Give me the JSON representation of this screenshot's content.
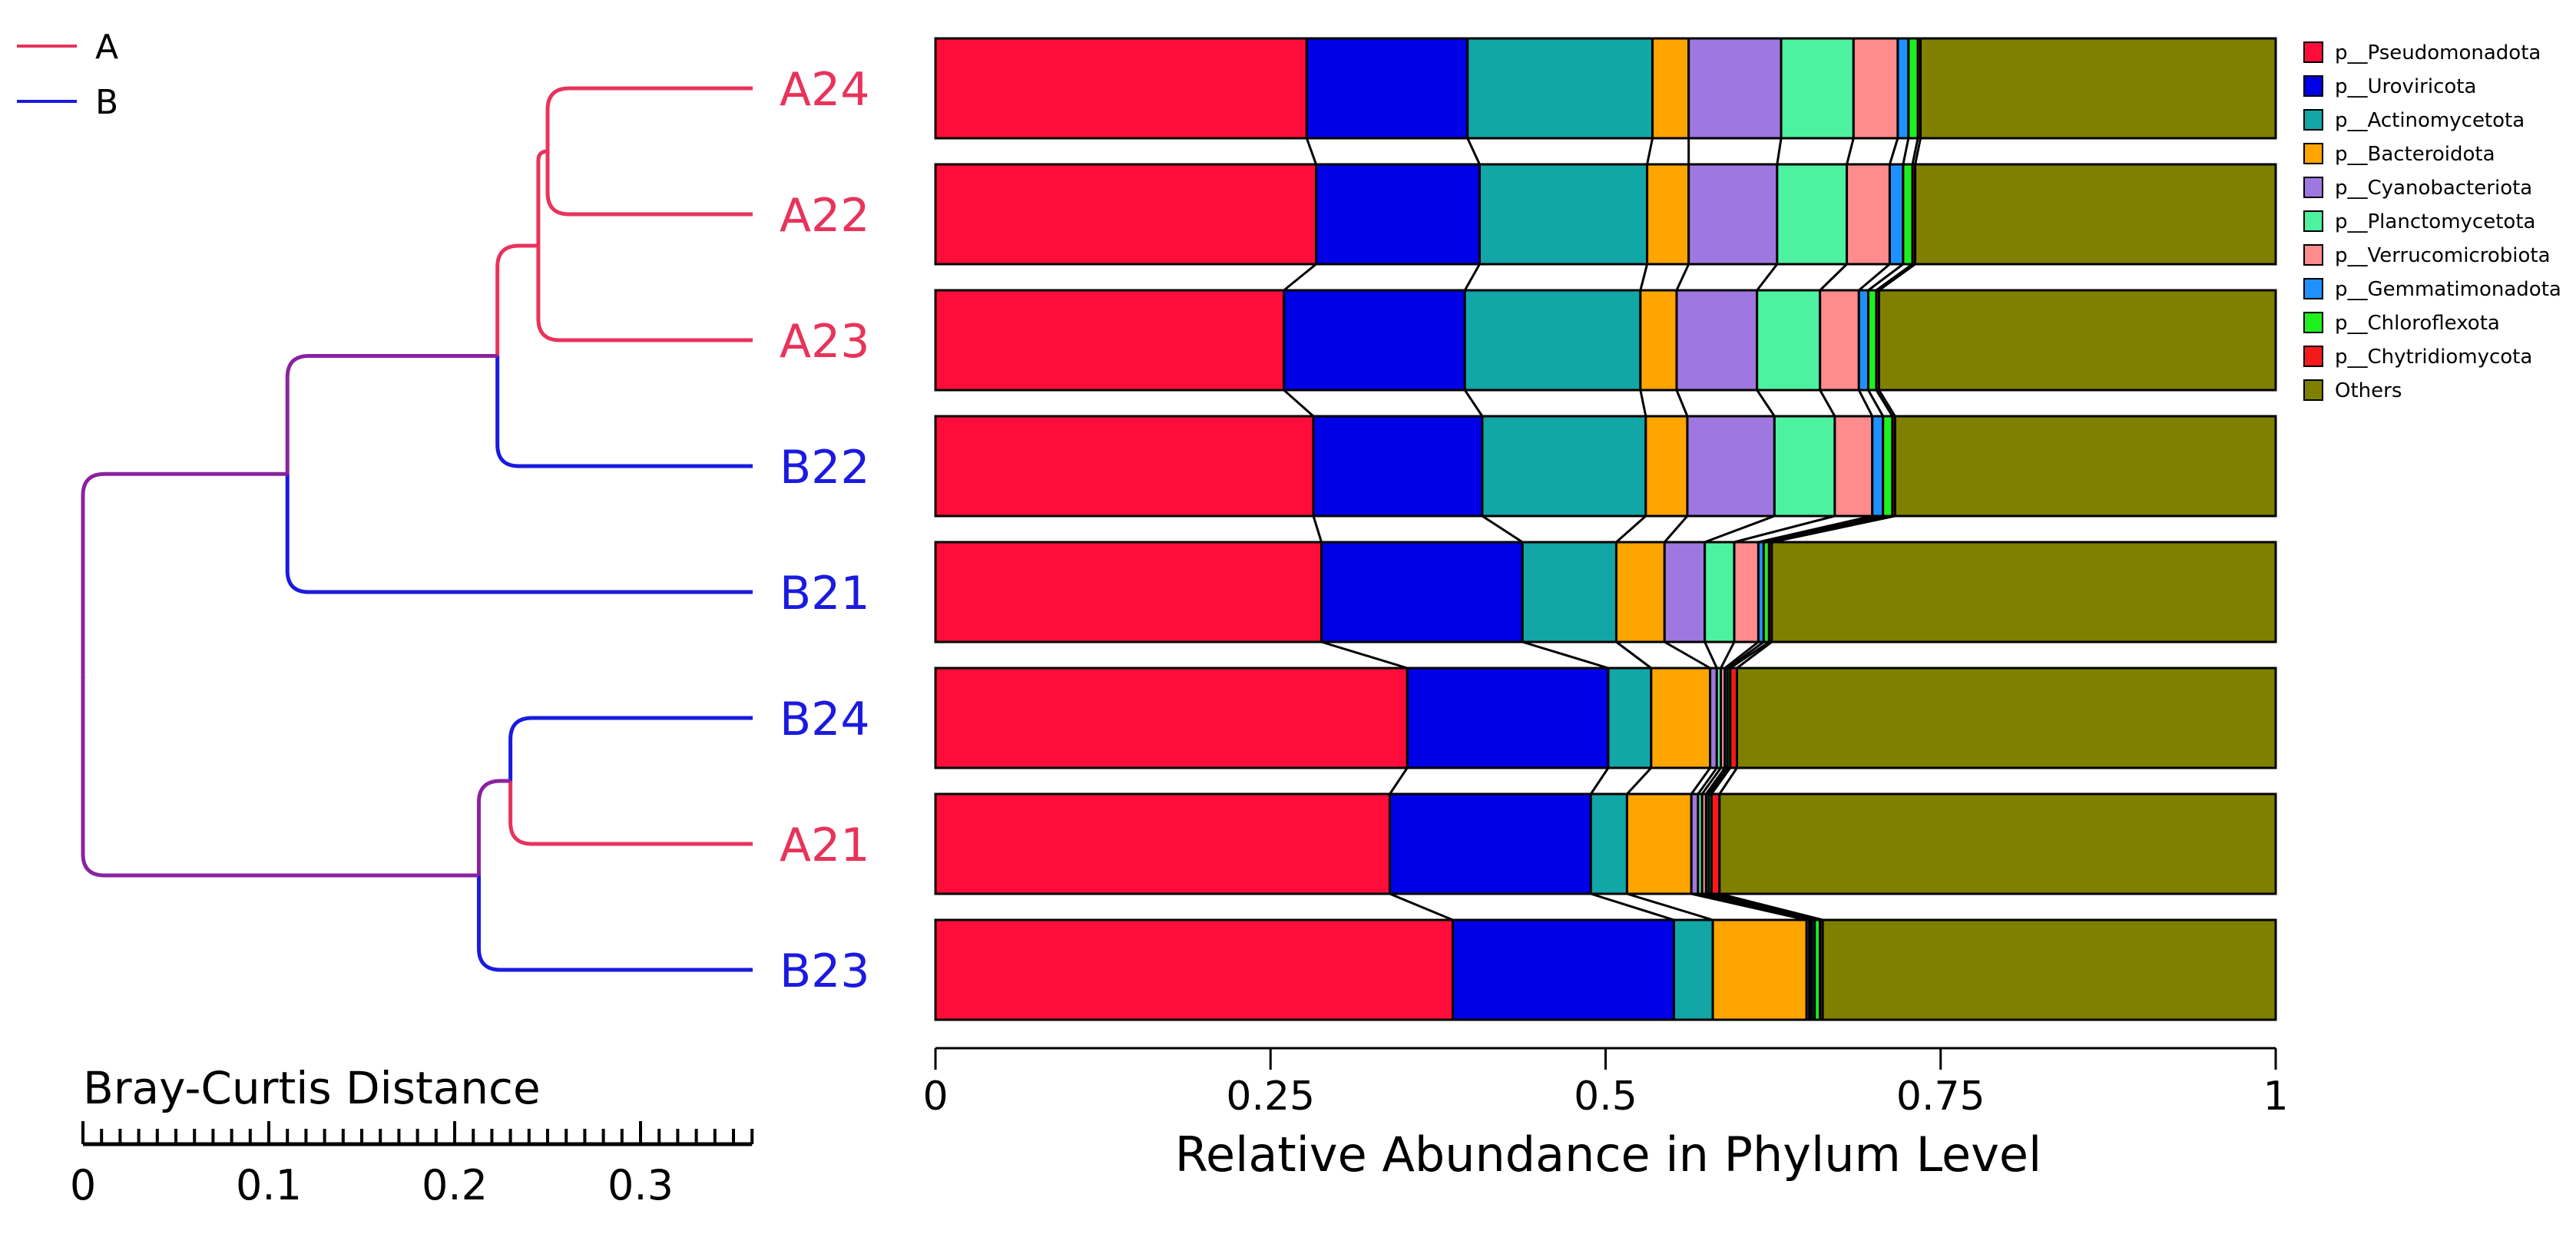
{
  "chart_data": {
    "type": "bar",
    "orientation": "horizontal",
    "stacked": true,
    "xlabel": "Relative Abundance in Phylum Level",
    "xlim": [
      0,
      1
    ],
    "xticks": [
      0,
      0.25,
      0.5,
      0.75,
      1
    ],
    "xtick_labels": [
      "0",
      "0.25",
      "0.5",
      "0.75",
      "1"
    ],
    "categories": [
      "A24",
      "A22",
      "A23",
      "B22",
      "B21",
      "B24",
      "A21",
      "B23"
    ],
    "category_groups": [
      "A",
      "A",
      "A",
      "B",
      "B",
      "B",
      "A",
      "B"
    ],
    "group_colors": {
      "A": "#E8335A",
      "B": "#1A1AE0"
    },
    "series": [
      {
        "name": "p__Pseudomonadota",
        "color": "#FF0D3A",
        "values": [
          0.277,
          0.284,
          0.26,
          0.282,
          0.288,
          0.352,
          0.339,
          0.386
        ]
      },
      {
        "name": "p__Uroviricota",
        "color": "#0000E6",
        "values": [
          0.12,
          0.122,
          0.135,
          0.126,
          0.15,
          0.15,
          0.15,
          0.165
        ]
      },
      {
        "name": "p__Actinomycetota",
        "color": "#12A6A6",
        "values": [
          0.138,
          0.125,
          0.131,
          0.122,
          0.07,
          0.032,
          0.027,
          0.029
        ]
      },
      {
        "name": "p__Bacteroidota",
        "color": "#FFA500",
        "values": [
          0.027,
          0.031,
          0.027,
          0.031,
          0.036,
          0.044,
          0.048,
          0.07
        ]
      },
      {
        "name": "p__Cyanobacteriota",
        "color": "#9E78E0",
        "values": [
          0.069,
          0.066,
          0.06,
          0.065,
          0.03,
          0.005,
          0.005,
          0.002
        ]
      },
      {
        "name": "p__Planctomycetota",
        "color": "#4CF2A0",
        "values": [
          0.054,
          0.052,
          0.047,
          0.045,
          0.022,
          0.003,
          0.003,
          0.001
        ]
      },
      {
        "name": "p__Verrucomicrobiota",
        "color": "#FF8C8C",
        "values": [
          0.033,
          0.032,
          0.029,
          0.028,
          0.018,
          0.003,
          0.003,
          0.001
        ]
      },
      {
        "name": "p__Gemmatimonadota",
        "color": "#1E90FF",
        "values": [
          0.008,
          0.01,
          0.007,
          0.008,
          0.004,
          0.002,
          0.002,
          0.002
        ]
      },
      {
        "name": "p__Chloroflexota",
        "color": "#1EF01E",
        "values": [
          0.007,
          0.007,
          0.006,
          0.007,
          0.004,
          0.002,
          0.002,
          0.004
        ]
      },
      {
        "name": "p__Chytridiomycota",
        "color": "#F51A1A",
        "values": [
          0.002,
          0.002,
          0.002,
          0.002,
          0.002,
          0.005,
          0.006,
          0.002
        ]
      },
      {
        "name": "Others",
        "color": "#808000",
        "values": [
          0.265,
          0.269,
          0.296,
          0.284,
          0.376,
          0.402,
          0.415,
          0.338
        ]
      }
    ]
  },
  "dendrogram": {
    "legend": [
      {
        "name": "A",
        "color": "#E8335A"
      },
      {
        "name": "B",
        "color": "#1A1AE0"
      }
    ],
    "axis_title": "Bray-Curtis Distance",
    "axis_ticks": [
      0,
      0.1,
      0.2,
      0.3
    ],
    "axis_tick_labels": [
      "0",
      "0.1",
      "0.2",
      "0.3"
    ],
    "axis_max": 0.36,
    "merge_color_mixed": "#8A22A0",
    "merges": [
      {
        "id": "m1",
        "left": "A24",
        "right": "A22",
        "height": 0.25
      },
      {
        "id": "m2",
        "left": "m1",
        "right": "A23",
        "height": 0.245
      },
      {
        "id": "m3",
        "left": "m2",
        "right": "B22",
        "height": 0.223
      },
      {
        "id": "m4",
        "left": "m3",
        "right": "B21",
        "height": 0.11
      },
      {
        "id": "m5",
        "left": "B24",
        "right": "A21",
        "height": 0.23
      },
      {
        "id": "m6",
        "left": "m5",
        "right": "B23",
        "height": 0.213
      },
      {
        "id": "m7",
        "left": "m4",
        "right": "m6",
        "height": 0.0
      }
    ]
  }
}
